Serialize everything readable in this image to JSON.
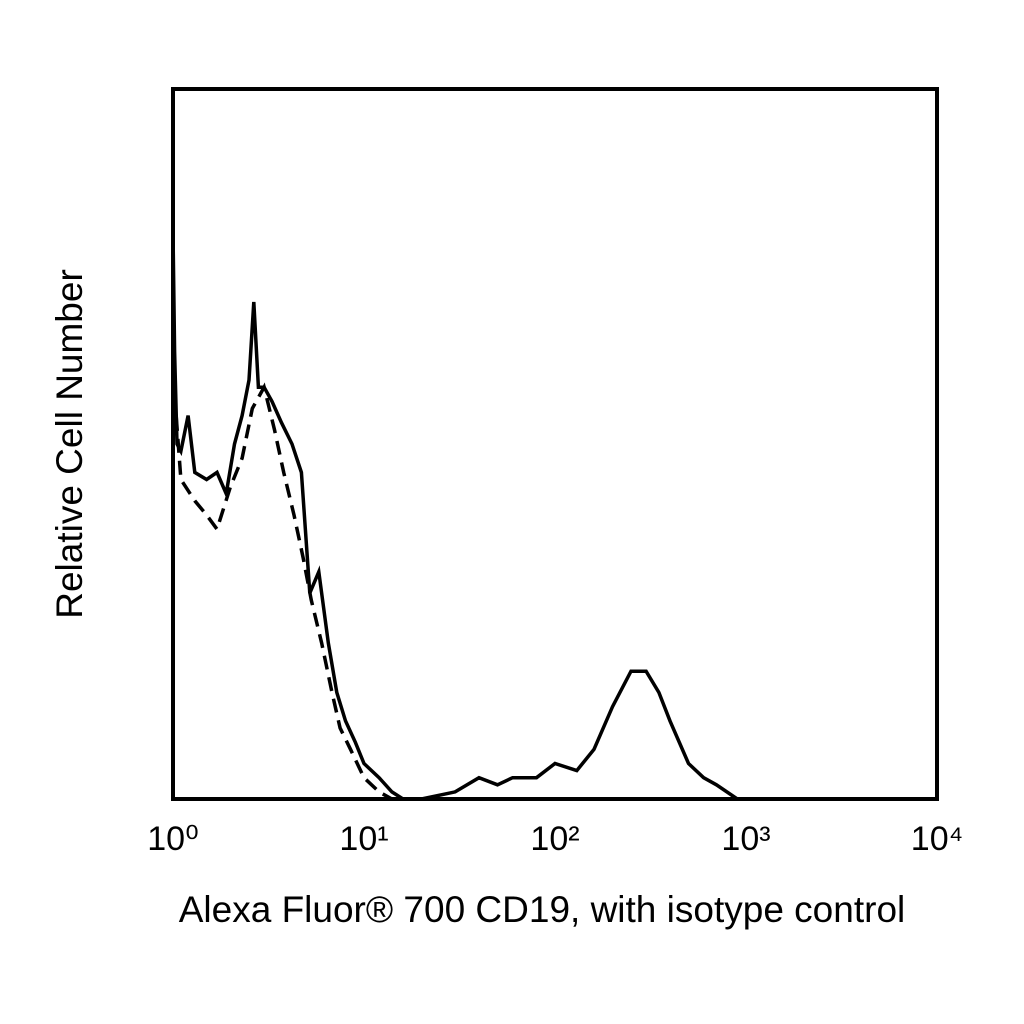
{
  "chart_data": {
    "type": "line",
    "x_label": "Alexa Fluor® 700 CD19, with isotype control",
    "y_label": "Relative Cell Number",
    "xscale": "log",
    "xlim": [
      1,
      10000
    ],
    "ylim": [
      0,
      100
    ],
    "xticks": [
      {
        "value": 1,
        "label": "10⁰"
      },
      {
        "value": 10,
        "label": "10¹"
      },
      {
        "value": 100,
        "label": "10²"
      },
      {
        "value": 1000,
        "label": "10³"
      },
      {
        "value": 10000,
        "label": "10⁴"
      }
    ],
    "series": [
      {
        "color": "#000000",
        "dash": false,
        "x": [
          1,
          1.02,
          1.05,
          1.1,
          1.2,
          1.3,
          1.5,
          1.7,
          1.9,
          2.1,
          2.3,
          2.5,
          2.65,
          2.8,
          3,
          3.3,
          3.7,
          4.2,
          4.7,
          5.2,
          5.8,
          6.5,
          7.2,
          8,
          9,
          10,
          12,
          14,
          16,
          20,
          30,
          40,
          50,
          60,
          80,
          100,
          130,
          160,
          200,
          250,
          300,
          350,
          400,
          500,
          600,
          700,
          900,
          10000
        ],
        "values": [
          80,
          63,
          50,
          49,
          54,
          46,
          45,
          46,
          43,
          50,
          54,
          59,
          70,
          58,
          58,
          56,
          53,
          50,
          46,
          29,
          32,
          22,
          15,
          11,
          8,
          5,
          3,
          1,
          0,
          0,
          1,
          3,
          2,
          3,
          3,
          5,
          4,
          7,
          13,
          18,
          18,
          15,
          11,
          5,
          3,
          2,
          0,
          0
        ]
      },
      {
        "color": "#000000",
        "dash": true,
        "x": [
          1,
          1.1,
          1.3,
          1.5,
          1.7,
          2,
          2.3,
          2.6,
          3,
          3.4,
          3.8,
          4.3,
          4.8,
          5.3,
          6,
          6.8,
          7.5,
          8.5,
          10,
          12,
          14,
          10000
        ],
        "values": [
          60,
          45,
          42,
          40,
          38,
          44,
          48,
          55,
          58,
          52,
          46,
          40,
          34,
          28,
          22,
          15,
          10,
          7,
          3,
          1,
          0,
          0
        ]
      }
    ]
  }
}
